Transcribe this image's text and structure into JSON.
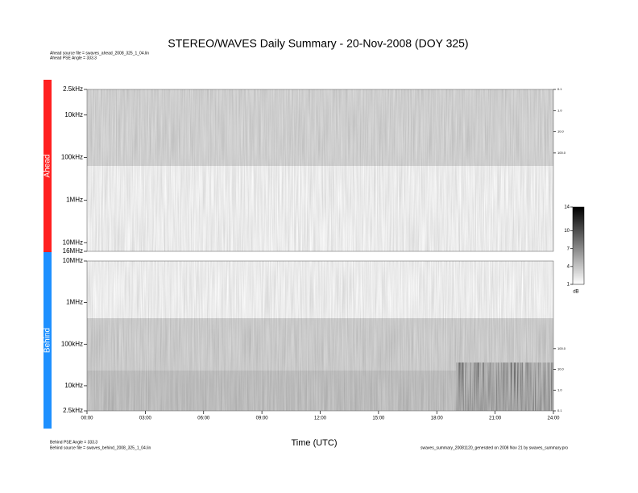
{
  "chart_data": [
    {
      "type": "heatmap",
      "panel": "Ahead",
      "color": "#ff2020",
      "title": "STEREO/WAVES Daily Summary - 20-Nov-2008 (DOY 325)",
      "annotations": [
        "Ahead source file = swaves_ahead_2008_325_1_04.lin",
        "Ahead PSE Angle = 333.3"
      ],
      "log_scale": true,
      "ylim": [
        16000000,
        2500
      ],
      "yticks": [
        {
          "value": 2500,
          "label": "2.5kHz"
        },
        {
          "value": 10000,
          "label": "10kHz"
        },
        {
          "value": 100000,
          "label": "100kHz"
        },
        {
          "value": 1000000,
          "label": "1MHz"
        },
        {
          "value": 10000000,
          "label": "10MHz"
        },
        {
          "value": 16000000,
          "label": "16MHz"
        }
      ],
      "y2lim": [
        4400000,
        0.1
      ],
      "y2ticks": [
        {
          "value": 0.1,
          "label": "0.1"
        },
        {
          "value": 1,
          "label": "1.0"
        },
        {
          "value": 10,
          "label": "10.0"
        },
        {
          "value": 100,
          "label": "100.0"
        }
      ],
      "colorbar": {
        "lim": [
          1,
          14
        ],
        "ticks": [
          1,
          4,
          7,
          10,
          14
        ],
        "label": "dB"
      }
    },
    {
      "type": "heatmap",
      "panel": "Behind",
      "color": "#1e90ff",
      "annotations": [
        "Behind PSE Angle = 333.3",
        "Behind source file = swaves_behind_2008_325_1_04.lin",
        "swaves_summary_20081120_generated on 2008 Nov 21 by swaves_summary.pro"
      ],
      "log_scale": true,
      "ylim": [
        2500,
        10000000
      ],
      "yticks": [
        {
          "value": 2500,
          "label": "2.5kHz"
        },
        {
          "value": 10000,
          "label": "10kHz"
        },
        {
          "value": 100000,
          "label": "100kHz"
        },
        {
          "value": 1000000,
          "label": "1MHz"
        },
        {
          "value": 10000000,
          "label": "10MHz"
        }
      ],
      "y2lim": [
        0.1,
        1700000
      ],
      "y2ticks": [
        {
          "value": 0.1,
          "label": "0.1"
        },
        {
          "value": 1,
          "label": "1.0"
        },
        {
          "value": 10,
          "label": "10.0"
        },
        {
          "value": 100,
          "label": "100.0"
        }
      ],
      "xlabel": "Time (UTC)",
      "xlim": [
        0,
        24
      ],
      "xticks": [
        {
          "value": 0,
          "label": "00:00"
        },
        {
          "value": 3,
          "label": "03:00"
        },
        {
          "value": 6,
          "label": "06:00"
        },
        {
          "value": 9,
          "label": "09:00"
        },
        {
          "value": 12,
          "label": "12:00"
        },
        {
          "value": 15,
          "label": "15:00"
        },
        {
          "value": 18,
          "label": "18:00"
        },
        {
          "value": 21,
          "label": "21:00"
        },
        {
          "value": 24,
          "label": "24:00"
        }
      ]
    }
  ]
}
